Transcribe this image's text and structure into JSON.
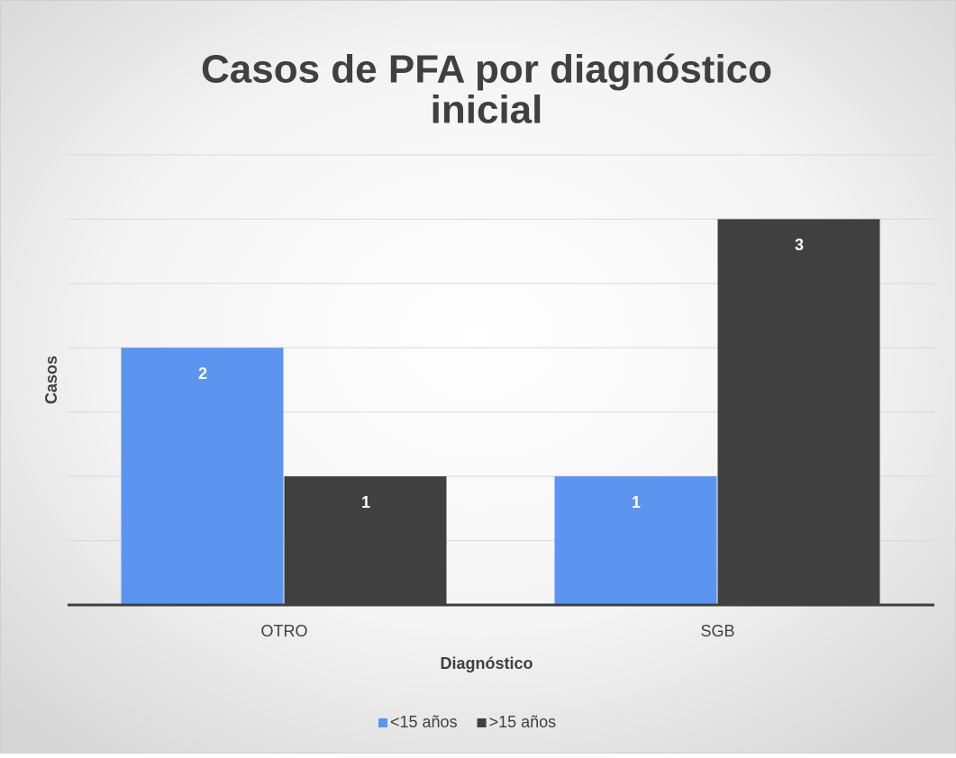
{
  "chart_data": {
    "type": "bar",
    "title": [
      "Casos de PFA por diagnóstico",
      "inicial"
    ],
    "x_label": "Diagnóstico",
    "y_label": "Casos",
    "categories": [
      "OTRO",
      "SGB"
    ],
    "series": [
      {
        "name": "<15 años",
        "color": "#5b95f0",
        "values": [
          2,
          1
        ]
      },
      {
        "name": ">15 años",
        "color": "#404040",
        "values": [
          1,
          3
        ]
      }
    ],
    "ylim": [
      0,
      3.5
    ],
    "yticks": [
      0,
      0.5,
      1,
      1.5,
      2,
      2.5,
      3,
      3.5
    ],
    "grid": true,
    "legend": "bottom"
  }
}
